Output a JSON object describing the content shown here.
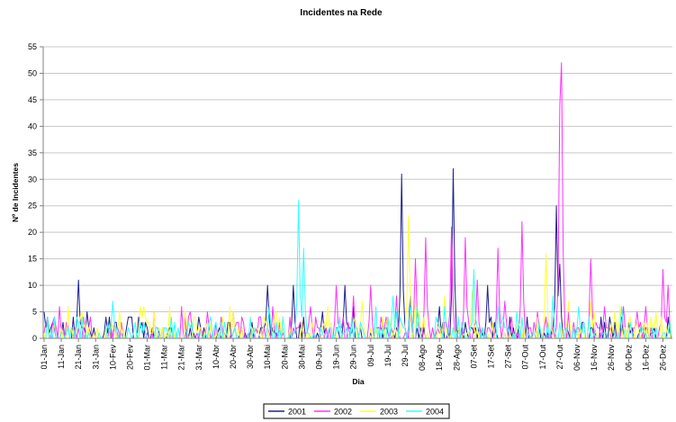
{
  "chart_data": {
    "type": "line",
    "title": "Incidentes na Rede",
    "xlabel": "Dia",
    "ylabel": "Nº de Incidentes",
    "ylim": [
      0,
      55
    ],
    "yticks": [
      0,
      5,
      10,
      15,
      20,
      25,
      30,
      35,
      40,
      45,
      50,
      55
    ],
    "grid": true,
    "legend_position": "bottom",
    "categories": [
      "01-Jan",
      "11-Jan",
      "21-Jan",
      "31-Jan",
      "10-Fev",
      "20-Fev",
      "01-Mar",
      "11-Mar",
      "21-Mar",
      "31-Mar",
      "10-Abr",
      "20-Abr",
      "30-Abr",
      "10-Mai",
      "20-Mai",
      "30-Mai",
      "09-Jun",
      "19-Jun",
      "29-Jun",
      "09-Jul",
      "19-Jul",
      "29-Jul",
      "08-Ago",
      "18-Ago",
      "28-Ago",
      "07-Set",
      "17-Set",
      "27-Set",
      "07-Out",
      "17-Out",
      "27-Out",
      "06-Nov",
      "16-Nov",
      "26-Nov",
      "06-Dez",
      "16-Dez",
      "26-Dez"
    ],
    "series": [
      {
        "name": "2001",
        "color": "#1f1f8f",
        "peaks": [
          [
            0,
            5
          ],
          [
            20,
            11
          ],
          [
            25,
            5
          ],
          [
            36,
            4
          ],
          [
            130,
            10
          ],
          [
            145,
            10
          ],
          [
            175,
            10
          ],
          [
            208,
            31
          ],
          [
            213,
            8
          ],
          [
            238,
            32
          ],
          [
            258,
            10
          ],
          [
            298,
            25
          ],
          [
            300,
            14
          ]
        ]
      },
      {
        "name": "2002",
        "color": "#ff33ff",
        "peaks": [
          [
            95,
            5
          ],
          [
            110,
            5
          ],
          [
            155,
            6
          ],
          [
            170,
            10
          ],
          [
            180,
            8
          ],
          [
            190,
            10
          ],
          [
            205,
            8
          ],
          [
            216,
            15
          ],
          [
            222,
            19
          ],
          [
            237,
            21
          ],
          [
            245,
            19
          ],
          [
            252,
            11
          ],
          [
            264,
            17
          ],
          [
            268,
            7
          ],
          [
            278,
            22
          ],
          [
            287,
            5
          ],
          [
            301,
            52
          ],
          [
            300,
            44
          ],
          [
            318,
            15
          ],
          [
            326,
            6
          ],
          [
            337,
            6
          ],
          [
            345,
            5
          ],
          [
            360,
            13
          ],
          [
            363,
            10
          ]
        ]
      },
      {
        "name": "2003",
        "color": "#ffff33",
        "peaks": [
          [
            110,
            5
          ],
          [
            135,
            5
          ],
          [
            165,
            6
          ],
          [
            185,
            7
          ],
          [
            212,
            23
          ],
          [
            216,
            7
          ],
          [
            233,
            8
          ],
          [
            249,
            9
          ],
          [
            292,
            16
          ],
          [
            305,
            7
          ],
          [
            318,
            7
          ],
          [
            332,
            5
          ]
        ]
      },
      {
        "name": "2004",
        "color": "#33ffff",
        "peaks": [
          [
            40,
            7
          ],
          [
            100,
            3
          ],
          [
            148,
            26
          ],
          [
            151,
            17
          ],
          [
            203,
            8
          ],
          [
            213,
            6
          ],
          [
            250,
            13
          ],
          [
            296,
            8
          ],
          [
            311,
            6
          ],
          [
            336,
            6
          ]
        ]
      }
    ]
  }
}
